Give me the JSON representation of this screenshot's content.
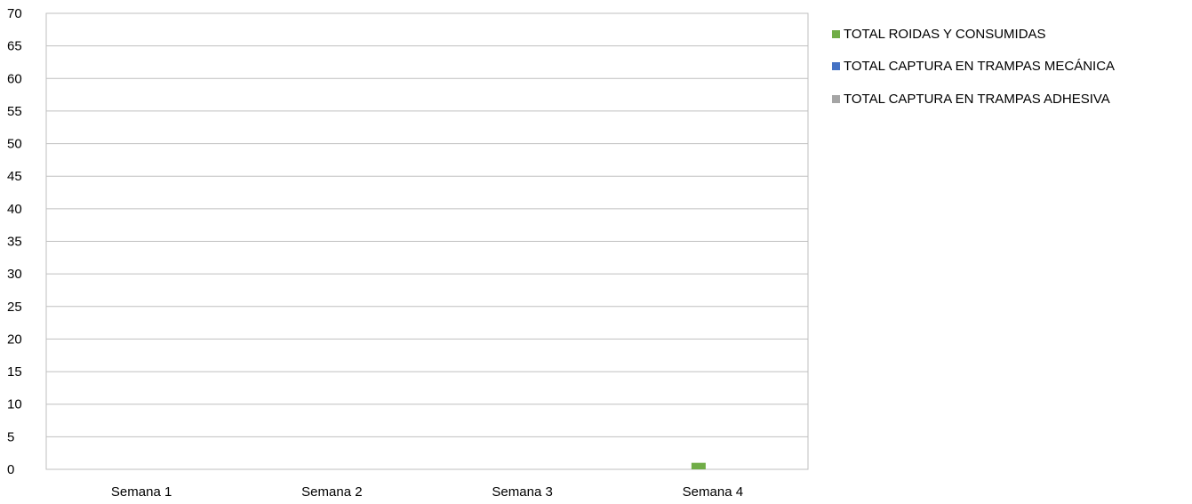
{
  "chart_data": {
    "type": "bar",
    "title": "",
    "xlabel": "",
    "ylabel": "",
    "categories": [
      "Semana 1",
      "Semana 2",
      "Semana 3",
      "Semana 4"
    ],
    "ylim": [
      0,
      70
    ],
    "yticks": [
      0,
      5,
      10,
      15,
      20,
      25,
      30,
      35,
      40,
      45,
      50,
      55,
      60,
      65,
      70
    ],
    "grid": true,
    "legend_position": "right",
    "series": [
      {
        "name": "TOTAL ROIDAS Y CONSUMIDAS",
        "color": "#70ad47",
        "values": [
          0,
          0,
          0,
          1
        ]
      },
      {
        "name": "TOTAL CAPTURA EN TRAMPAS  MECÁNICA",
        "color": "#4472c4",
        "values": [
          0,
          0,
          0,
          0
        ]
      },
      {
        "name": "TOTAL CAPTURA EN TRAMPAS  ADHESIVA",
        "color": "#a5a5a5",
        "values": [
          0,
          0,
          0,
          0
        ]
      }
    ]
  }
}
